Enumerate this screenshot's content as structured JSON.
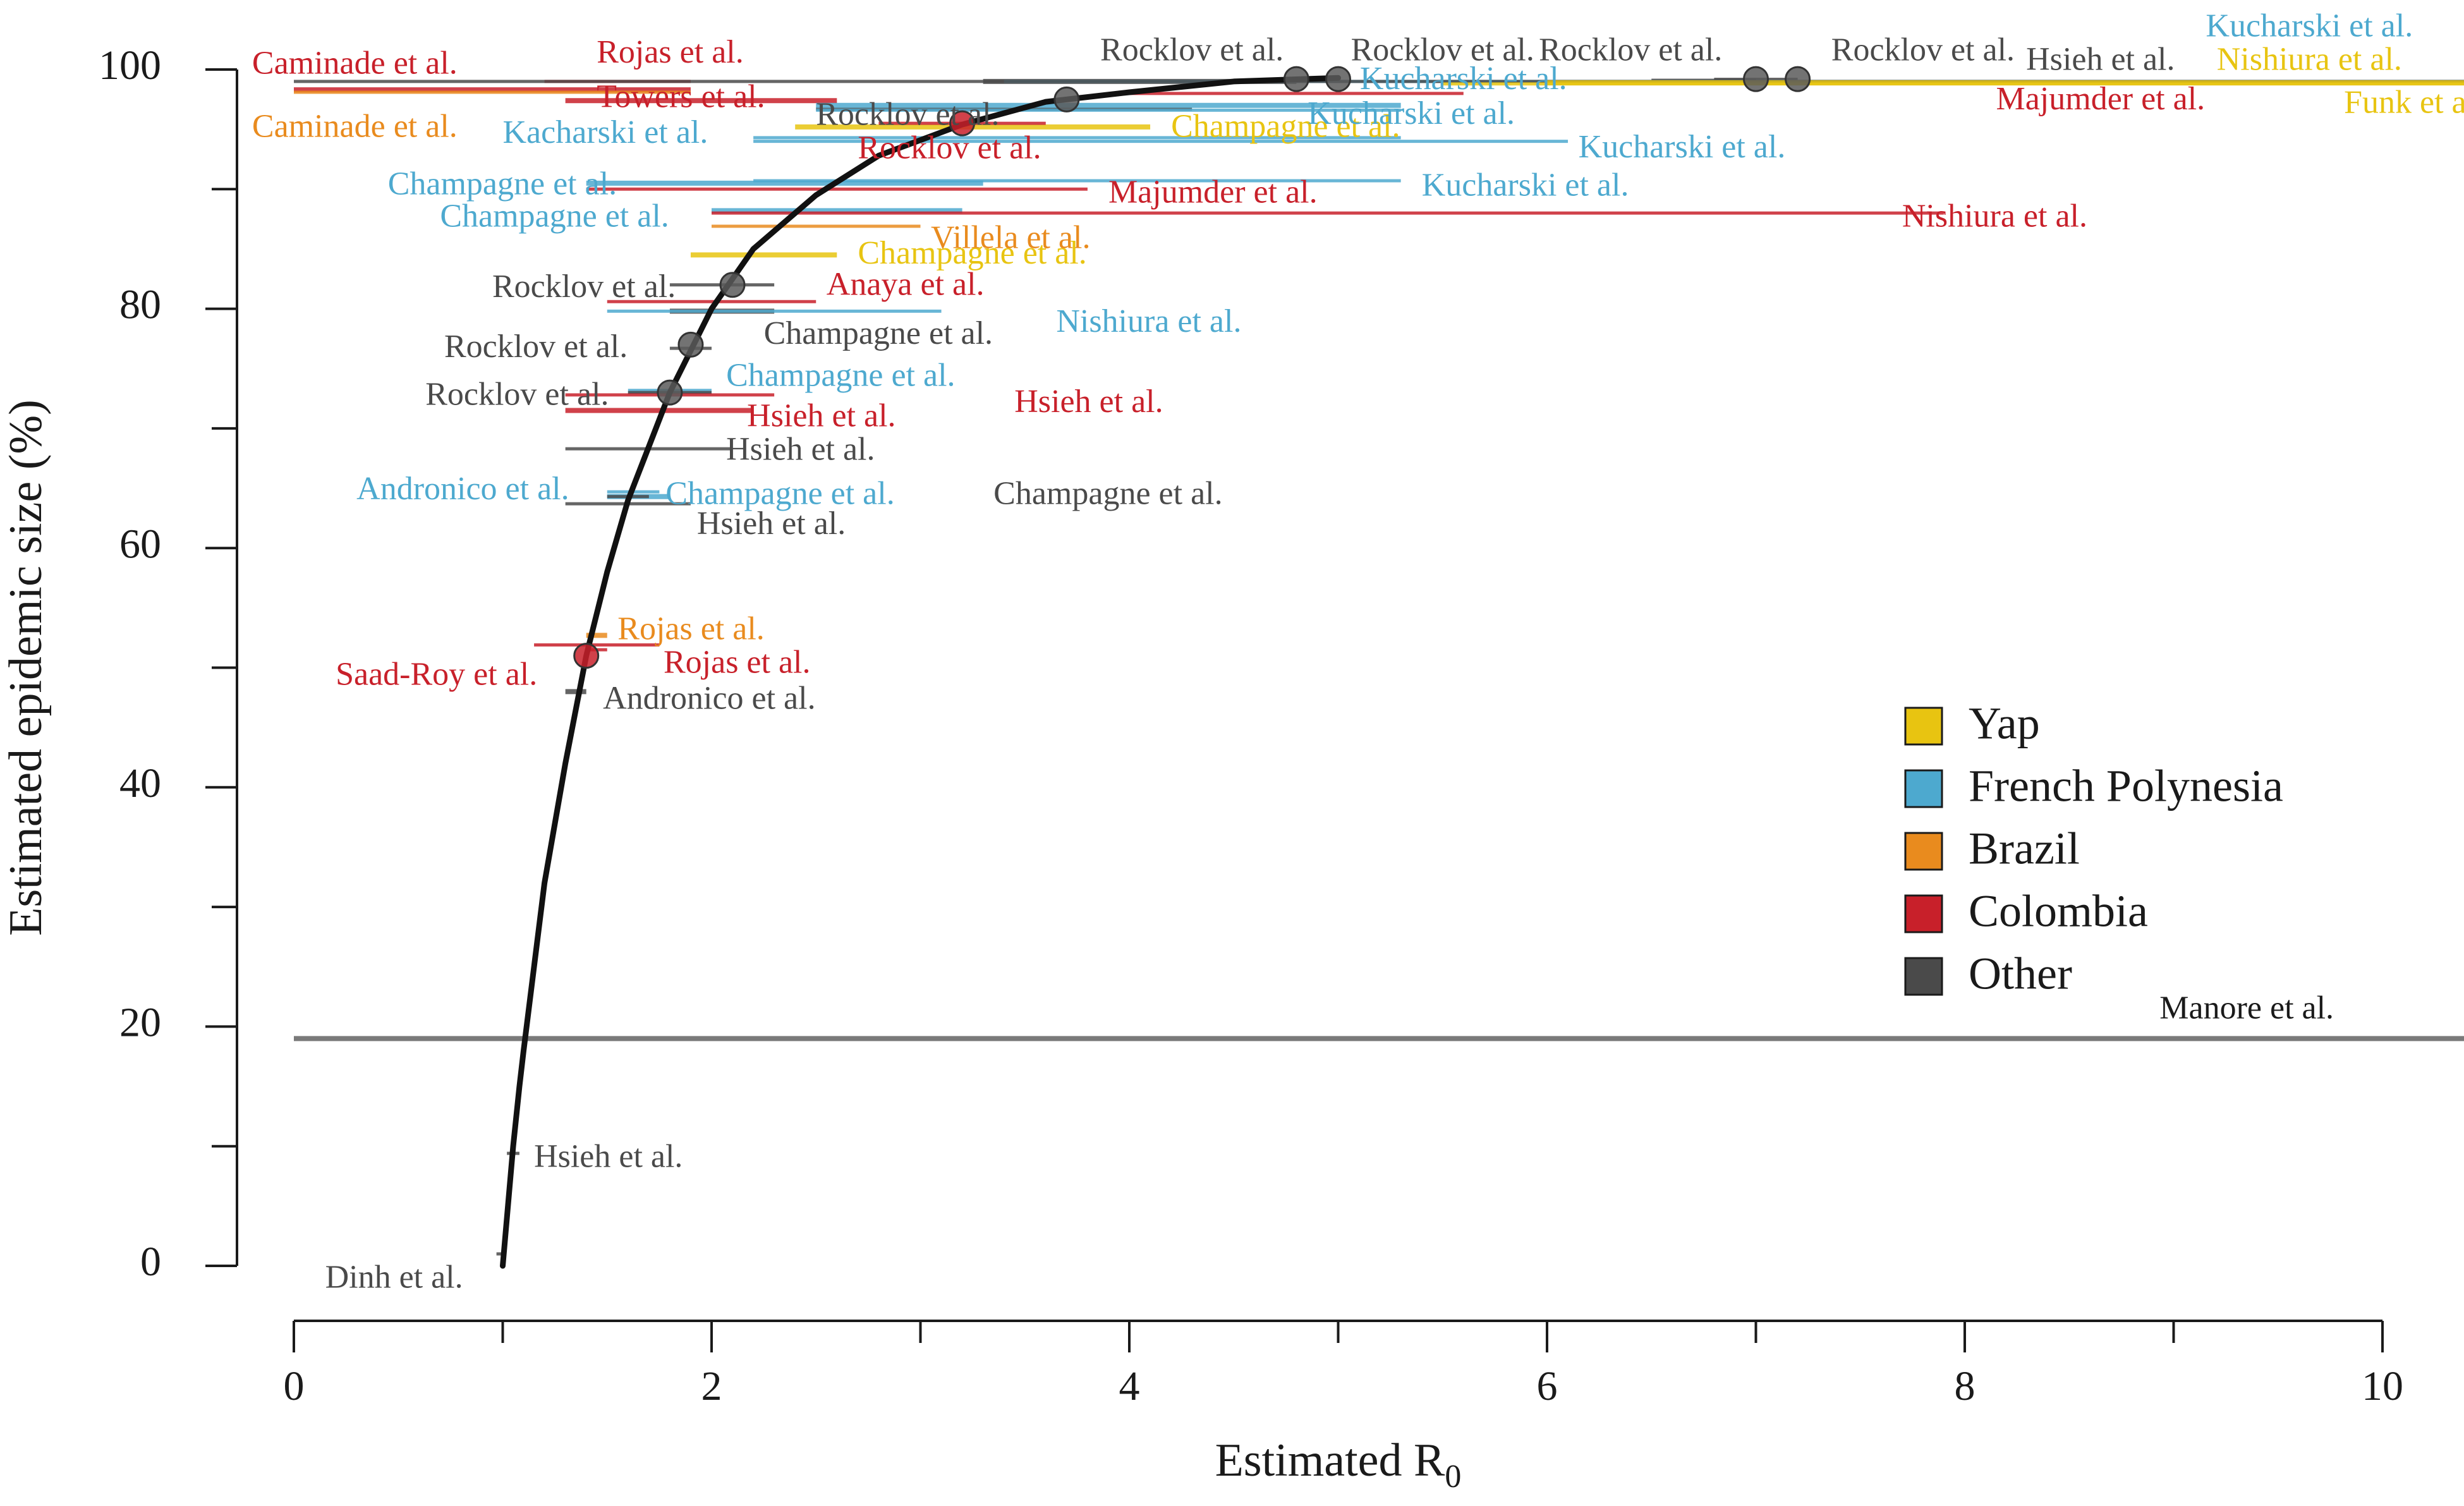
{
  "chart_data": {
    "type": "scatter",
    "xlabel": "Estimated R",
    "xlabel_subscript": "0",
    "ylabel": "Estimated epidemic size (%)",
    "xlim": [
      0,
      10
    ],
    "ylim": [
      0,
      100
    ],
    "x_ticks": [
      "0",
      "2",
      "4",
      "6",
      "8",
      "10"
    ],
    "y_ticks": [
      "0",
      "20",
      "40",
      "60",
      "80",
      "100"
    ],
    "grid": false,
    "legend_position": "center-right",
    "colors": {
      "Yap": "#e8c411",
      "French Polynesia": "#4da9cf",
      "Brazil": "#e98b1e",
      "Colombia": "#c8202a",
      "Other": "#4a4a4a"
    },
    "legend": [
      "Yap",
      "French Polynesia",
      "Brazil",
      "Colombia",
      "Other"
    ],
    "curve": {
      "name": "",
      "x": [
        1.0,
        1.01,
        1.03,
        1.05,
        1.08,
        1.1,
        1.15,
        1.2,
        1.3,
        1.4,
        1.5,
        1.6,
        1.8,
        2.0,
        2.2,
        2.5,
        2.8,
        3.2,
        3.6,
        4.0,
        4.5,
        5.0
      ],
      "y": [
        0,
        2,
        6,
        10,
        15,
        18,
        25,
        32,
        42,
        51,
        58,
        64,
        73,
        80,
        85,
        89.5,
        92.8,
        95.4,
        97.3,
        98.1,
        99.0,
        99.3
      ]
    },
    "reference_line": {
      "label": "Manore et al.",
      "y": 19,
      "x0": 0,
      "x1": 10.4
    },
    "points": [
      {
        "x": 1.4,
        "y": 51,
        "group": "Colombia"
      },
      {
        "x": 1.8,
        "y": 73,
        "group": "Other"
      },
      {
        "x": 1.9,
        "y": 77,
        "group": "Other"
      },
      {
        "x": 2.1,
        "y": 82,
        "group": "Other"
      },
      {
        "x": 3.2,
        "y": 95.5,
        "group": "Colombia"
      },
      {
        "x": 3.7,
        "y": 97.5,
        "group": "Other"
      },
      {
        "x": 4.8,
        "y": 99.2,
        "group": "Other"
      },
      {
        "x": 5.0,
        "y": 99.2,
        "group": "Other"
      },
      {
        "x": 7.0,
        "y": 99.2,
        "group": "Other"
      },
      {
        "x": 7.2,
        "y": 99.2,
        "group": "Other"
      }
    ],
    "studies": [
      {
        "label": "Caminade et al.",
        "group": "Colombia",
        "x0": 0,
        "x1": 1.9,
        "y": 98.3,
        "lx": -0.2,
        "ly": 100.3,
        "anchor": "start"
      },
      {
        "label": "Rojas et al.",
        "group": "Colombia",
        "x0": 1.2,
        "x1": 1.9,
        "y": 99.0,
        "lx": 1.45,
        "ly": 101.2,
        "anchor": "start"
      },
      {
        "label": "Caminade et al.",
        "group": "Brazil",
        "x0": 0,
        "x1": 1.9,
        "y": 98.1,
        "lx": -0.2,
        "ly": 95.0,
        "anchor": "start"
      },
      {
        "label": "Towers et al.",
        "group": "Colombia",
        "x0": 1.3,
        "x1": 2.6,
        "y": 97.4,
        "lx": 1.45,
        "ly": 97.5,
        "anchor": "start"
      },
      {
        "label": "Kacharski et al.",
        "group": "French Polynesia",
        "x0": 2.2,
        "x1": 5.3,
        "y": 94.3,
        "lx": 1.0,
        "ly": 94.5,
        "anchor": "start"
      },
      {
        "label": "Rocklov et al.",
        "group": "Other",
        "x0": 2.5,
        "x1": 4.3,
        "y": 96.7,
        "lx": 2.5,
        "ly": 96.0,
        "anchor": "start"
      },
      {
        "label": "Champagne et al.",
        "group": "Yap",
        "x0": 2.4,
        "x1": 4.1,
        "y": 95.2,
        "lx": 4.2,
        "ly": 95.0,
        "anchor": "start"
      },
      {
        "label": "Rocklov et al.",
        "group": "Colombia",
        "x0": 2.8,
        "x1": 3.6,
        "y": 95.5,
        "lx": 2.7,
        "ly": 93.2,
        "anchor": "start"
      },
      {
        "label": "Kucharski et al.",
        "group": "French Polynesia",
        "x0": 2.2,
        "x1": 6.1,
        "y": 94.0,
        "lx": 6.15,
        "ly": 93.3,
        "anchor": "start"
      },
      {
        "label": "Champagne et al.",
        "group": "French Polynesia",
        "x0": 1.4,
        "x1": 3.3,
        "y": 90.5,
        "lx": 0.45,
        "ly": 90.2,
        "anchor": "start"
      },
      {
        "label": "Majumder et al.",
        "group": "Colombia",
        "x0": 1.4,
        "x1": 3.8,
        "y": 90.0,
        "lx": 3.9,
        "ly": 89.5,
        "anchor": "start"
      },
      {
        "label": "Kucharski et al.",
        "group": "French Polynesia",
        "x0": 2.2,
        "x1": 5.3,
        "y": 90.7,
        "lx": 5.4,
        "ly": 90.1,
        "anchor": "start"
      },
      {
        "label": "Champagne et al.",
        "group": "French Polynesia",
        "x0": 2.0,
        "x1": 3.2,
        "y": 88.2,
        "lx": 0.7,
        "ly": 87.5,
        "anchor": "start"
      },
      {
        "label": "Nishiura et al.",
        "group": "Colombia",
        "x0": 2.0,
        "x1": 7.9,
        "y": 88.0,
        "lx": 7.7,
        "ly": 87.5,
        "anchor": "start"
      },
      {
        "label": "Villela et al.",
        "group": "Brazil",
        "x0": 2.0,
        "x1": 3.0,
        "y": 86.9,
        "lx": 3.05,
        "ly": 85.7,
        "anchor": "start"
      },
      {
        "label": "Champagne et al.",
        "group": "Yap",
        "x0": 1.9,
        "x1": 2.6,
        "y": 84.5,
        "lx": 2.7,
        "ly": 84.4,
        "anchor": "start"
      },
      {
        "label": "Anaya et al.",
        "group": "Colombia",
        "x0": 1.5,
        "x1": 2.5,
        "y": 80.6,
        "lx": 2.55,
        "ly": 81.8,
        "anchor": "start"
      },
      {
        "label": "Rocklov et al.",
        "group": "Other",
        "x0": 1.8,
        "x1": 2.3,
        "y": 82.0,
        "lx": 0.95,
        "ly": 81.6,
        "anchor": "start"
      },
      {
        "label": "Champagne et al.",
        "group": "Other",
        "x0": 1.8,
        "x1": 2.3,
        "y": 79.8,
        "lx": 2.25,
        "ly": 77.7,
        "anchor": "start"
      },
      {
        "label": "Nishiura et al.",
        "group": "French Polynesia",
        "x0": 1.5,
        "x1": 3.1,
        "y": 79.8,
        "lx": 3.65,
        "ly": 78.7,
        "anchor": "start"
      },
      {
        "label": "Rocklov et al.",
        "group": "Other",
        "x0": 1.8,
        "x1": 2.0,
        "y": 76.7,
        "lx": 0.72,
        "ly": 76.6,
        "anchor": "start"
      },
      {
        "label": "Champagne et al.",
        "group": "French Polynesia",
        "x0": 1.6,
        "x1": 2.0,
        "y": 73.1,
        "lx": 2.07,
        "ly": 74.2,
        "anchor": "start"
      },
      {
        "label": "Rocklov et al.",
        "group": "Other",
        "x0": 1.6,
        "x1": 2.0,
        "y": 73.0,
        "lx": 0.63,
        "ly": 72.6,
        "anchor": "start"
      },
      {
        "label": "Hsieh et al.",
        "group": "Colombia",
        "x0": 1.3,
        "x1": 2.3,
        "y": 72.8,
        "lx": 3.45,
        "ly": 72.0,
        "anchor": "start"
      },
      {
        "label": "Hsieh et al.",
        "group": "Colombia",
        "x0": 1.3,
        "x1": 2.2,
        "y": 71.5,
        "lx": 2.17,
        "ly": 70.8,
        "anchor": "start"
      },
      {
        "label": "Hsieh et al.",
        "group": "Other",
        "x0": 1.3,
        "x1": 2.1,
        "y": 68.3,
        "lx": 2.07,
        "ly": 68.0,
        "anchor": "start"
      },
      {
        "label": "Andronico et al.",
        "group": "French Polynesia",
        "x0": 1.5,
        "x1": 1.75,
        "y": 64.7,
        "lx": 0.3,
        "ly": 64.7,
        "anchor": "start"
      },
      {
        "label": "Champagne et al.",
        "group": "French Polynesia",
        "x0": 1.5,
        "x1": 1.8,
        "y": 64.3,
        "lx": 1.78,
        "ly": 64.3,
        "anchor": "start"
      },
      {
        "label": "Champagne et al.",
        "group": "Other",
        "x0": 1.5,
        "x1": 1.7,
        "y": 64.3,
        "lx": 3.35,
        "ly": 64.3,
        "anchor": "start"
      },
      {
        "label": "Hsieh et al.",
        "group": "Other",
        "x0": 1.3,
        "x1": 1.9,
        "y": 63.7,
        "lx": 1.93,
        "ly": 61.8,
        "anchor": "start"
      },
      {
        "label": "Rojas et al.",
        "group": "Brazil",
        "x0": 1.4,
        "x1": 1.5,
        "y": 52.7,
        "lx": 1.55,
        "ly": 53.0,
        "anchor": "start"
      },
      {
        "label": "Saad-Roy et al.",
        "group": "Colombia",
        "x0": 1.15,
        "x1": 1.75,
        "y": 51.9,
        "lx": 0.2,
        "ly": 49.2,
        "anchor": "start"
      },
      {
        "label": "Rojas et al.",
        "group": "Colombia",
        "x0": 1.4,
        "x1": 1.5,
        "y": 51.5,
        "lx": 1.77,
        "ly": 50.2,
        "anchor": "start"
      },
      {
        "label": "Andronico et al.",
        "group": "Other",
        "x0": 1.3,
        "x1": 1.4,
        "y": 48.0,
        "lx": 1.48,
        "ly": 47.2,
        "anchor": "start"
      },
      {
        "label": "Hsieh et al.",
        "group": "Other",
        "x0": 1.02,
        "x1": 1.08,
        "y": 9.4,
        "lx": 1.15,
        "ly": 8.9,
        "anchor": "start"
      },
      {
        "label": "Dinh et al.",
        "group": "Other",
        "x0": 0.97,
        "x1": 1.0,
        "y": 1.0,
        "lx": 0.15,
        "ly": -1.2,
        "anchor": "start"
      },
      {
        "label": "Rocklov et al.",
        "group": "Other",
        "x0": 3.3,
        "x1": 4.8,
        "y": 99.0,
        "lx": 4.3,
        "ly": 101.4,
        "anchor": "middle"
      },
      {
        "label": "Rocklov et al.",
        "group": "Other",
        "x0": 4.5,
        "x1": 5.0,
        "y": 99.1,
        "lx": 5.5,
        "ly": 101.4,
        "anchor": "middle"
      },
      {
        "label": "Rocklov et al.",
        "group": "Other",
        "x0": 6.5,
        "x1": 7.0,
        "y": 99.1,
        "lx": 6.4,
        "ly": 101.4,
        "anchor": "middle"
      },
      {
        "label": "Rocklov et al.",
        "group": "Other",
        "x0": 6.8,
        "x1": 7.2,
        "y": 99.1,
        "lx": 7.8,
        "ly": 101.4,
        "anchor": "middle"
      },
      {
        "label": "Kucharski et al.",
        "group": "French Polynesia",
        "x0": 3.4,
        "x1": 10.4,
        "y": 99.0,
        "lx": 9.65,
        "ly": 103.4,
        "anchor": "middle"
      },
      {
        "label": "Hsieh et al.",
        "group": "Other",
        "x0": 0,
        "x1": 10.4,
        "y": 99.0,
        "lx": 8.65,
        "ly": 100.6,
        "anchor": "middle"
      },
      {
        "label": "Nishiura et al.",
        "group": "Yap",
        "x0": 6.0,
        "x1": 10.4,
        "y": 98.9,
        "lx": 9.65,
        "ly": 100.6,
        "anchor": "middle"
      },
      {
        "label": "Majumder et al.",
        "group": "Colombia",
        "x0": 4.0,
        "x1": 5.6,
        "y": 98.0,
        "lx": 8.65,
        "ly": 97.3,
        "anchor": "middle"
      },
      {
        "label": "Funk et al.",
        "group": "Yap",
        "x0": 5.5,
        "x1": 10.4,
        "y": 98.8,
        "lx": 10.15,
        "ly": 97.0,
        "anchor": "middle"
      },
      {
        "label": "Kucharski et al.",
        "group": "French Polynesia",
        "x0": 2.5,
        "x1": 5.3,
        "y": 97.0,
        "lx": 5.6,
        "ly": 99.0,
        "anchor": "middle"
      },
      {
        "label": "Kucharski et al.",
        "group": "French Polynesia",
        "x0": 2.5,
        "x1": 5.3,
        "y": 96.6,
        "lx": 5.35,
        "ly": 96.1,
        "anchor": "middle"
      }
    ]
  }
}
